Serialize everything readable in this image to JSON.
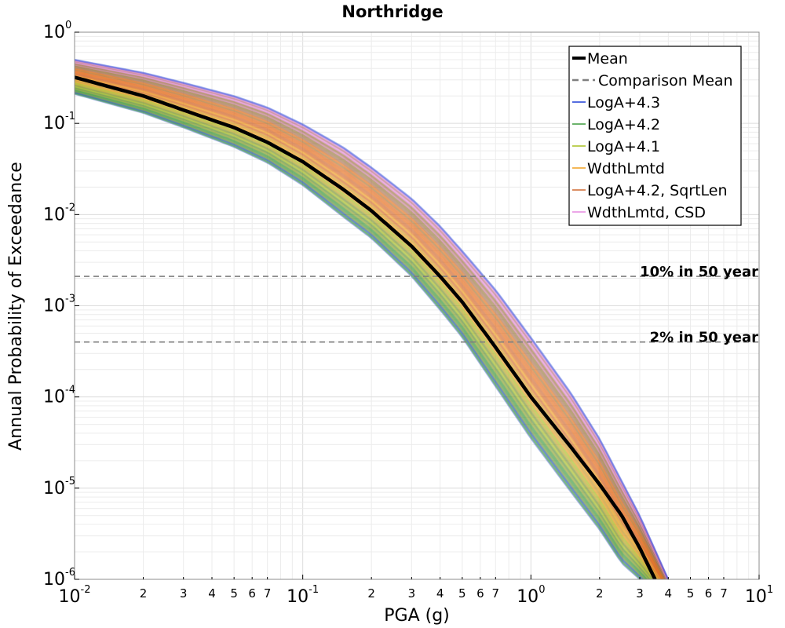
{
  "chart_data": {
    "type": "line",
    "title": "Northridge",
    "xlabel": "PGA (g)",
    "ylabel": "Annual Probability of Exceedance",
    "x_scale": "log",
    "y_scale": "log",
    "xlim": [
      0.01,
      10
    ],
    "ylim": [
      1e-06,
      1
    ],
    "grid": true,
    "x_major_ticks": [
      {
        "base": "10",
        "exp": "-2",
        "value": 0.01
      },
      {
        "base": "10",
        "exp": "-1",
        "value": 0.1
      },
      {
        "base": "10",
        "exp": "0",
        "value": 1
      },
      {
        "base": "10",
        "exp": "1",
        "value": 10
      }
    ],
    "y_major_ticks": [
      {
        "base": "10",
        "exp": "0",
        "value": 1
      },
      {
        "base": "10",
        "exp": "-1",
        "value": 0.1
      },
      {
        "base": "10",
        "exp": "-2",
        "value": 0.01
      },
      {
        "base": "10",
        "exp": "-3",
        "value": 0.001
      },
      {
        "base": "10",
        "exp": "-4",
        "value": 0.0001
      },
      {
        "base": "10",
        "exp": "-5",
        "value": 1e-05
      },
      {
        "base": "10",
        "exp": "-6",
        "value": 1e-06
      }
    ],
    "x_minor_labels": [
      "2",
      "3",
      "4",
      "5",
      "6",
      "7"
    ],
    "legend": {
      "position": "top-right",
      "entries": [
        {
          "label": "Mean",
          "color": "#000000",
          "style": "solid-thick"
        },
        {
          "label": "Comparison Mean",
          "color": "#7f7f7f",
          "style": "dashed"
        },
        {
          "label": "LogA+4.3",
          "color": "#1f3fd6",
          "style": "solid"
        },
        {
          "label": "LogA+4.2",
          "color": "#3c9a3c",
          "style": "solid"
        },
        {
          "label": "LogA+4.1",
          "color": "#a8c020",
          "style": "solid"
        },
        {
          "label": "WdthLmtd",
          "color": "#f0a020",
          "style": "solid"
        },
        {
          "label": "LogA+4.2, SqrtLen",
          "color": "#d06a30",
          "style": "solid"
        },
        {
          "label": "WdthLmtd, CSD",
          "color": "#e68ae0",
          "style": "solid"
        }
      ]
    },
    "reference_lines": [
      {
        "label": "10% in 50 year",
        "y": 0.0021,
        "color": "#7f7f7f"
      },
      {
        "label": "2% in 50 year",
        "y": 0.0004,
        "color": "#7f7f7f"
      }
    ],
    "series": [
      {
        "name": "Mean",
        "x": [
          0.01,
          0.02,
          0.03,
          0.05,
          0.07,
          0.1,
          0.15,
          0.2,
          0.3,
          0.4,
          0.5,
          0.7,
          1.0,
          1.5,
          2.0,
          2.5,
          3.0,
          3.5
        ],
        "y": [
          0.32,
          0.2,
          0.14,
          0.09,
          0.062,
          0.038,
          0.019,
          0.011,
          0.0045,
          0.0021,
          0.0011,
          0.00035,
          0.0001,
          2.8e-05,
          1.1e-05,
          5e-06,
          2.2e-06,
          1e-06
        ]
      }
    ],
    "branch_envelopes": [
      {
        "name": "LogA+4.3",
        "color": "#1f3fd6",
        "x": [
          0.01,
          0.02,
          0.03,
          0.05,
          0.07,
          0.1,
          0.15,
          0.2,
          0.3,
          0.4,
          0.5,
          0.7,
          1.0,
          1.5,
          2.0,
          2.5,
          3.0
        ],
        "y_low": [
          0.21,
          0.13,
          0.09,
          0.055,
          0.037,
          0.021,
          0.0095,
          0.0055,
          0.0021,
          0.0009,
          0.00045,
          0.00013,
          3.5e-05,
          9e-06,
          3.5e-06,
          1.5e-06,
          1e-06
        ]
      },
      {
        "name": "LogA+4.2, SqrtLen",
        "color": "#e8701e",
        "x": [
          0.01,
          0.02,
          0.03,
          0.05,
          0.07,
          0.1,
          0.15,
          0.2,
          0.3,
          0.4,
          0.5,
          0.7,
          1.0,
          1.5,
          2.0,
          3.0,
          4.0
        ],
        "y_high": [
          0.5,
          0.36,
          0.28,
          0.2,
          0.15,
          0.098,
          0.055,
          0.033,
          0.015,
          0.0075,
          0.004,
          0.0015,
          0.00045,
          0.00011,
          3.5e-05,
          5e-06,
          1e-06
        ]
      }
    ]
  }
}
